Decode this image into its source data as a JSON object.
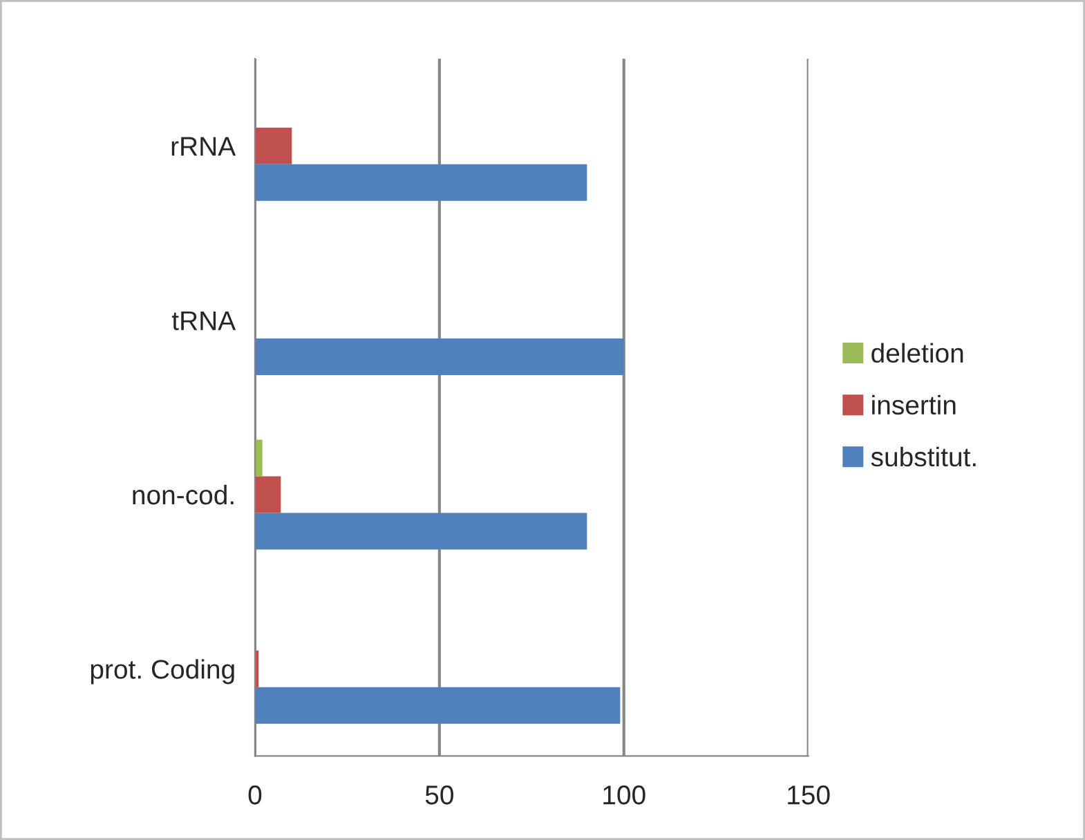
{
  "chart_data": {
    "type": "bar",
    "orientation": "horizontal",
    "categories": [
      "rRNA",
      "tRNA",
      "non-cod.",
      "prot. Coding"
    ],
    "series": [
      {
        "name": "substitut.",
        "color": "#4f81bd",
        "values": [
          90,
          100,
          90,
          99
        ]
      },
      {
        "name": "insertin",
        "color": "#c0504d",
        "values": [
          10,
          null,
          7,
          1
        ]
      },
      {
        "name": "deletion",
        "color": "#9bbb59",
        "values": [
          null,
          null,
          2,
          null
        ]
      }
    ],
    "xlim": [
      0,
      150
    ],
    "xticks": [
      0,
      50,
      100,
      150
    ],
    "grid": "x",
    "legend": "right"
  }
}
